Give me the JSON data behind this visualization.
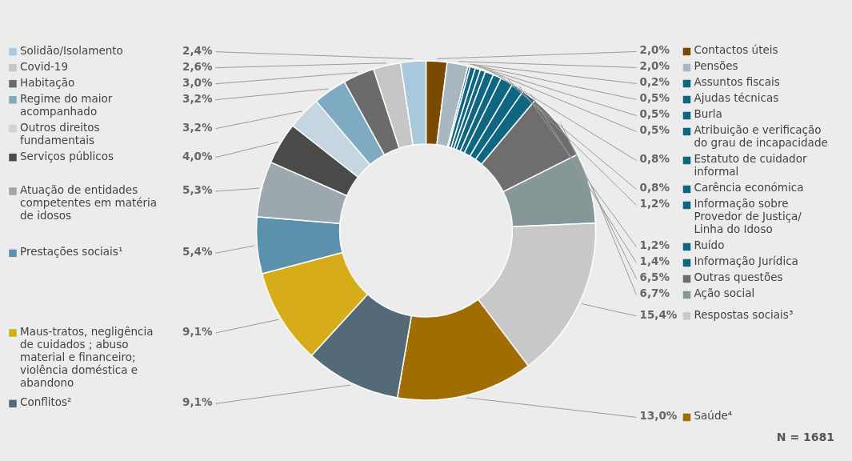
{
  "chart_data": {
    "type": "donut",
    "categories": [
      "Contactos úteis",
      "Pensões",
      "Assuntos fiscais",
      "Ajudas técnicas",
      "Burla",
      "Atribuição e verificação do grau de incapacidade",
      "Estatuto de cuidador informal",
      "Carência económica",
      "Informação sobre Provedor de Justiça/ Linha do Idoso",
      "Ruído",
      "Informação Jurídica",
      "Outras questões",
      "Ação social",
      "Respostas sociais³",
      "Saúde⁴",
      "Conflitos²",
      "Maus-tratos, negligência de cuidados ; abuso material e financeiro; violência doméstica e abandono",
      "Prestações sociais¹",
      "Atuação de entidades competentes em matéria de idosos",
      "Serviços públicos",
      "Outros direitos fundamentais",
      "Regime do maior acompanhado",
      "Habitação",
      "Covid-19",
      "Solidão/Isolamento"
    ],
    "values": [
      2.0,
      2.0,
      0.2,
      0.5,
      0.5,
      0.5,
      0.8,
      0.8,
      1.2,
      1.2,
      1.4,
      6.5,
      6.7,
      15.4,
      13.0,
      9.1,
      9.1,
      5.4,
      5.3,
      4.0,
      3.2,
      3.2,
      3.0,
      2.6,
      2.4
    ],
    "value_labels": [
      "2,0%",
      "2,0%",
      "0,2%",
      "0,5%",
      "0,5%",
      "0,5%",
      "0,8%",
      "0,8%",
      "1,2%",
      "1,2%",
      "1,4%",
      "6,5%",
      "6,7%",
      "15,4%",
      "13,0%",
      "9,1%",
      "9,1%",
      "5,4%",
      "5,3%",
      "4,0%",
      "3,2%",
      "3,2%",
      "3,0%",
      "2,6%",
      "2,4%"
    ],
    "colors": [
      "#7a4a00",
      "#a9b7c0",
      "#0e6680",
      "#0e6680",
      "#0e6680",
      "#0e6680",
      "#0e6680",
      "#0e6680",
      "#0e6680",
      "#0e6680",
      "#0e6680",
      "#6e6e6e",
      "#869797",
      "#c8c8c8",
      "#a06e00",
      "#546a78",
      "#d6ac1a",
      "#5b91ad",
      "#9ca7ae",
      "#4a4a48",
      "#c6d6e0",
      "#7eaac2",
      "#6b6b6b",
      "#c6c6c6",
      "#a8c8db"
    ],
    "legend": "right",
    "annotations": [
      "N = 1681"
    ]
  }
}
